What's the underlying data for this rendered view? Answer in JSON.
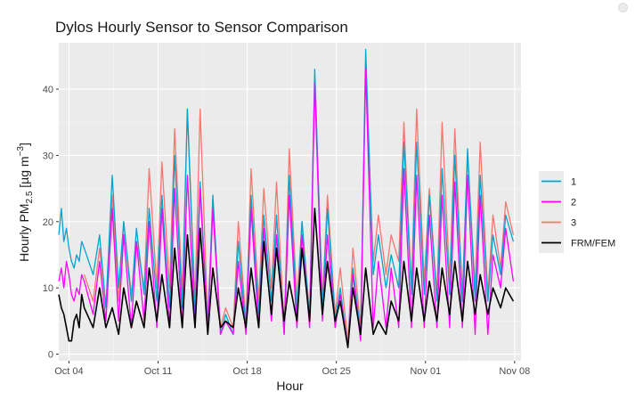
{
  "chart_data": {
    "type": "line",
    "title": "Dylos Hourly Sensor to Sensor Comparison",
    "xlabel": "Hour",
    "ylabel_parts": {
      "before": "Hourly PM",
      "sub": "2.5",
      "mid": " [µg m",
      "sup": "−3",
      "after": "]"
    },
    "x_unit": "day",
    "xlim": [
      -0.8,
      35.5
    ],
    "ylim": [
      -1,
      47
    ],
    "x_ticks": [
      {
        "at": 0,
        "label": "Oct 04"
      },
      {
        "at": 7,
        "label": "Oct 11"
      },
      {
        "at": 14,
        "label": "Oct 18"
      },
      {
        "at": 21,
        "label": "Oct 25"
      },
      {
        "at": 28,
        "label": "Nov 01"
      },
      {
        "at": 35,
        "label": "Nov 08"
      }
    ],
    "y_ticks": [
      0,
      10,
      20,
      30,
      40
    ],
    "grid": true,
    "legend_position": "right",
    "series": [
      {
        "name": "3",
        "color": "#F8766D",
        "x": [
          1.2,
          1.9,
          2.4,
          2.9,
          3.4,
          3.9,
          4.3,
          4.9,
          5.3,
          5.9,
          6.3,
          6.9,
          7.3,
          7.9,
          8.3,
          8.9,
          9.3,
          9.9,
          10.3,
          10.9,
          11.3,
          11.9,
          12.3,
          12.9,
          13.3,
          13.9,
          14.3,
          14.9,
          15.3,
          15.9,
          16.3,
          16.9,
          17.3,
          17.9,
          18.3,
          18.9,
          19.3,
          19.9,
          20.3,
          20.9,
          21.3,
          21.9,
          22.3,
          22.9,
          23.3,
          23.9,
          24.3,
          24.9,
          25.3,
          25.9,
          26.3,
          26.9,
          27.3,
          27.9,
          28.3,
          28.9,
          29.3,
          29.9,
          30.3,
          30.9,
          31.3,
          31.9,
          32.3,
          32.9,
          33.3,
          33.9,
          34.3,
          34.9
        ],
        "y": [
          12,
          8,
          16,
          7,
          24,
          8,
          20,
          9,
          17,
          10,
          28,
          10,
          29,
          10,
          34,
          9,
          37,
          8,
          37,
          5,
          23,
          4,
          7,
          4,
          20,
          5,
          28,
          8,
          25,
          10,
          26,
          4,
          31,
          8,
          20,
          6,
          42,
          8,
          24,
          6,
          13,
          2,
          16,
          4,
          43,
          14,
          21,
          12,
          18,
          14,
          35,
          10,
          37,
          11,
          25,
          9,
          35,
          11,
          34,
          9,
          30,
          10,
          32,
          9,
          21,
          13,
          23,
          18
        ]
      },
      {
        "name": "1",
        "color": "#00A5CF",
        "x": [
          -0.8,
          -0.6,
          -0.4,
          -0.2,
          0.0,
          0.2,
          0.4,
          0.6,
          0.8,
          1.0,
          1.2,
          1.9,
          2.4,
          2.9,
          3.4,
          3.9,
          4.3,
          4.9,
          5.3,
          5.9,
          6.3,
          6.9,
          7.3,
          7.9,
          8.3,
          8.9,
          9.3,
          9.9,
          10.3,
          10.9,
          11.3,
          11.9,
          12.3,
          12.9,
          13.3,
          13.9,
          14.3,
          14.9,
          15.3,
          15.9,
          16.3,
          16.9,
          17.3,
          17.9,
          18.3,
          18.9,
          19.3,
          19.9,
          20.3,
          20.9,
          21.3,
          21.9,
          22.3,
          22.9,
          23.3,
          23.9,
          24.3,
          24.9,
          25.3,
          25.9,
          26.3,
          26.9,
          27.3,
          27.9,
          28.3,
          28.9,
          29.3,
          29.9,
          30.3,
          30.9,
          31.3,
          31.9,
          32.3,
          32.9,
          33.3,
          33.9,
          34.3,
          34.9
        ],
        "y": [
          18,
          22,
          17,
          19,
          16,
          14,
          13,
          15,
          14,
          17,
          16,
          12,
          18,
          7,
          27,
          10,
          20,
          8,
          19,
          9,
          22,
          8,
          24,
          7,
          30,
          7,
          37,
          6,
          26,
          4,
          24,
          3,
          6,
          3,
          17,
          4,
          24,
          6,
          21,
          8,
          21,
          3,
          27,
          6,
          20,
          5,
          43,
          7,
          22,
          5,
          10,
          1,
          13,
          3,
          46,
          12,
          18,
          10,
          15,
          10,
          32,
          9,
          32,
          9,
          24,
          8,
          28,
          9,
          30,
          8,
          31,
          8,
          27,
          8,
          18,
          12,
          21,
          17
        ]
      },
      {
        "name": "2",
        "color": "#FF00FF",
        "x": [
          -0.8,
          -0.6,
          -0.4,
          -0.2,
          0.0,
          0.2,
          0.4,
          0.6,
          0.8,
          1.0,
          1.2,
          1.9,
          2.4,
          2.9,
          3.4,
          3.9,
          4.3,
          4.9,
          5.3,
          5.9,
          6.3,
          6.9,
          7.3,
          7.9,
          8.3,
          8.9,
          9.3,
          9.9,
          10.3,
          10.9,
          11.3,
          11.9,
          12.3,
          12.9,
          13.3,
          13.9,
          14.3,
          14.9,
          15.3,
          15.9,
          16.3,
          16.9,
          17.3,
          17.9,
          18.3,
          18.9,
          19.3,
          19.9,
          20.3,
          20.9,
          21.3,
          21.9,
          22.3,
          22.9,
          23.3,
          23.9,
          24.3,
          24.9,
          25.3,
          25.9,
          26.3,
          26.9,
          27.3,
          27.9,
          28.3,
          28.9,
          29.3,
          29.9,
          30.3,
          30.9,
          31.3,
          31.9,
          32.3,
          32.9,
          33.3,
          33.9,
          34.3,
          34.9
        ],
        "y": [
          11,
          13,
          10,
          14,
          12,
          9,
          8,
          10,
          9,
          12,
          11,
          6,
          14,
          5,
          22,
          5,
          18,
          4,
          17,
          5,
          20,
          4,
          22,
          4,
          25,
          4,
          27,
          4,
          25,
          3,
          22,
          3,
          5,
          3,
          14,
          3,
          22,
          4,
          19,
          5,
          18,
          3,
          24,
          4,
          18,
          4,
          41,
          5,
          18,
          4,
          9,
          1,
          12,
          2,
          43,
          4,
          14,
          4,
          13,
          4,
          28,
          4,
          27,
          4,
          21,
          4,
          24,
          4,
          26,
          4,
          27,
          3,
          24,
          3,
          15,
          10,
          19,
          11
        ]
      },
      {
        "name": "FRM/FEM",
        "color": "#000000",
        "x": [
          -0.8,
          -0.6,
          -0.4,
          -0.2,
          0.0,
          0.2,
          0.4,
          0.6,
          0.8,
          1.0,
          1.2,
          1.9,
          2.4,
          2.9,
          3.4,
          3.9,
          4.3,
          4.9,
          5.3,
          5.9,
          6.3,
          6.9,
          7.3,
          7.9,
          8.3,
          8.9,
          9.3,
          9.9,
          10.3,
          10.9,
          11.3,
          11.9,
          12.3,
          12.9,
          13.3,
          13.9,
          14.3,
          14.9,
          15.3,
          15.9,
          16.3,
          16.9,
          17.3,
          17.9,
          18.3,
          18.9,
          19.3,
          19.9,
          20.3,
          20.9,
          21.3,
          21.9,
          22.3,
          22.9,
          23.3,
          23.9,
          24.3,
          24.9,
          25.3,
          25.9,
          26.3,
          26.9,
          27.3,
          27.9,
          28.3,
          28.9,
          29.3,
          29.9,
          30.3,
          30.9,
          31.3,
          31.9,
          32.3,
          32.9,
          33.3,
          33.9,
          34.3,
          34.9
        ],
        "y": [
          9,
          7,
          6,
          4,
          2,
          2,
          5,
          6,
          4,
          9,
          7,
          4,
          10,
          4,
          7,
          3,
          10,
          4,
          8,
          4,
          13,
          5,
          12,
          4,
          16,
          4,
          18,
          4,
          19,
          3,
          13,
          4,
          5,
          4,
          10,
          4,
          13,
          4,
          17,
          6,
          16,
          5,
          11,
          5,
          16,
          5,
          22,
          6,
          14,
          5,
          8,
          1,
          10,
          3,
          13,
          3,
          5,
          3,
          8,
          5,
          14,
          5,
          13,
          5,
          11,
          5,
          13,
          6,
          14,
          5,
          14,
          6,
          12,
          6,
          10,
          7,
          10,
          8
        ]
      }
    ]
  }
}
